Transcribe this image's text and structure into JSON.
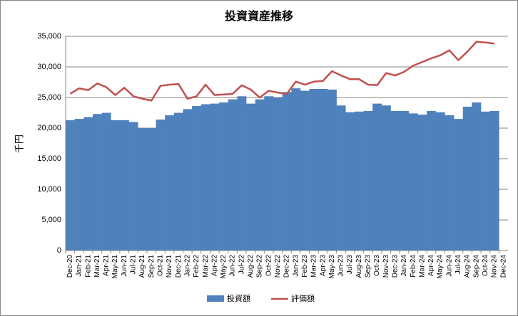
{
  "chart_data": {
    "type": "bar_line",
    "title": "投資資産推移",
    "y_label": "千円",
    "categories": [
      "Dec-20",
      "Jan-21",
      "Feb-21",
      "Mar-21",
      "Apr-21",
      "May-21",
      "Jun-21",
      "Jul-21",
      "Aug-21",
      "Sep-21",
      "Oct-21",
      "Nov-21",
      "Dec-21",
      "Jan-22",
      "Feb-22",
      "Mar-22",
      "Apr-22",
      "May-22",
      "Jun-22",
      "Jul-22",
      "Aug-22",
      "Sep-22",
      "Oct-22",
      "Nov-22",
      "Dec-22",
      "Jan-23",
      "Feb-23",
      "Mar-23",
      "Apr-23",
      "May-23",
      "Jun-23",
      "Jul-23",
      "Aug-23",
      "Sep-23",
      "Oct-23",
      "Nov-23",
      "Dec-23",
      "Jan-24",
      "Feb-24",
      "Mar-24",
      "Apr-24",
      "May-24",
      "Jun-24",
      "Jul-24",
      "Aug-24",
      "Sep-24",
      "Oct-24",
      "Nov-24",
      "Dec-24"
    ],
    "series": [
      {
        "name": "投資額",
        "type": "bar",
        "color": "#4f81bd",
        "values": [
          21300,
          21500,
          21800,
          22300,
          22500,
          21300,
          21300,
          21000,
          20000,
          20000,
          21400,
          22100,
          22500,
          23100,
          23600,
          23900,
          24000,
          24200,
          24700,
          25200,
          24000,
          24700,
          25200,
          25000,
          25900,
          26500,
          26100,
          26400,
          26400,
          26300,
          23700,
          22600,
          22700,
          22800,
          24000,
          23700,
          22800,
          22800,
          22400,
          22200,
          22800,
          22600,
          22100,
          21500,
          23500,
          24200,
          22700,
          22800,
          null
        ]
      },
      {
        "name": "評価額",
        "type": "line",
        "color": "#c0504d",
        "values": [
          25600,
          26500,
          26200,
          27300,
          26700,
          25400,
          26600,
          25200,
          24800,
          24500,
          26900,
          27100,
          27200,
          24800,
          25200,
          27100,
          25400,
          25500,
          25600,
          27000,
          26300,
          25000,
          26100,
          25800,
          25600,
          27600,
          27100,
          27600,
          27700,
          29300,
          28600,
          28000,
          28000,
          27100,
          27000,
          29000,
          28600,
          29200,
          30200,
          30800,
          31400,
          31900,
          32700,
          31100,
          32500,
          34100,
          34000,
          33800,
          null
        ]
      }
    ],
    "ylim": [
      0,
      35000
    ],
    "yticks": [
      0,
      {
        "value": 5000,
        "label": "5,000"
      },
      {
        "value": 10000,
        "label": "10,000"
      },
      {
        "value": 15000,
        "label": "15,000"
      },
      {
        "value": 20000,
        "label": "20,000"
      },
      {
        "value": 25000,
        "label": "25,000"
      },
      {
        "value": 30000,
        "label": "30,000"
      },
      {
        "value": 35000,
        "label": "35,000"
      }
    ],
    "grid": true,
    "legend": "bottom"
  }
}
